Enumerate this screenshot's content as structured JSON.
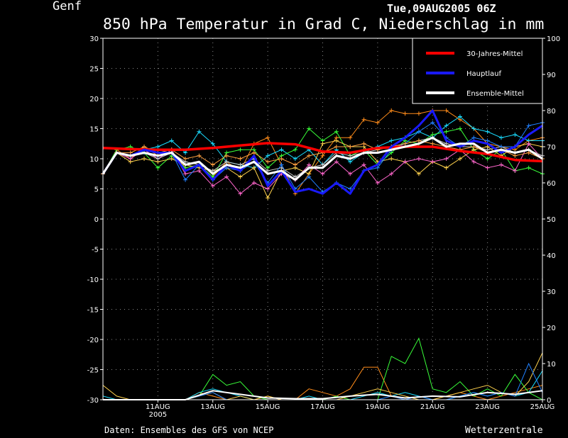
{
  "chart_data": {
    "type": "line",
    "station": "Genf",
    "timestamp": "Tue,09AUG2005 06Z",
    "title": "850 hPa Temperatur in Grad C, Niederschlag in mm",
    "footer_left": "Daten: Ensembles des GFS von NCEP",
    "footer_right": "Wetterzentrale",
    "y_left": {
      "ylim": [
        -30,
        30
      ],
      "ticks": [
        30,
        25,
        20,
        15,
        10,
        5,
        0,
        -5,
        -10,
        -15,
        -20,
        -25,
        -30
      ]
    },
    "y_right": {
      "ylim": [
        0,
        100
      ],
      "ticks": [
        100,
        90,
        80,
        70,
        60,
        50,
        40,
        30,
        20,
        10,
        0
      ]
    },
    "x_domain": [
      0,
      64
    ],
    "x_ticks": [
      {
        "x": 8,
        "label": "11AUG",
        "sub": "2005"
      },
      {
        "x": 16,
        "label": "13AUG",
        "sub": ""
      },
      {
        "x": 24,
        "label": "15AUG",
        "sub": ""
      },
      {
        "x": 32,
        "label": "17AUG",
        "sub": ""
      },
      {
        "x": 40,
        "label": "19AUG",
        "sub": ""
      },
      {
        "x": 48,
        "label": "21AUG",
        "sub": ""
      },
      {
        "x": 56,
        "label": "23AUG",
        "sub": ""
      },
      {
        "x": 64,
        "label": "25AUG",
        "sub": ""
      }
    ],
    "grid": true,
    "legend_position": "top-right",
    "colors": {
      "clim": "#ff0000",
      "main": "#1a1aff",
      "mean": "#ffffff",
      "members": [
        "#ff8c1a",
        "#1adcff",
        "#39ff39",
        "#ffd24d",
        "#ff66cc",
        "#c8c8c8",
        "#2080ff",
        "#ffa040"
      ]
    },
    "series": [
      {
        "name": "30-Jahres-Mittel",
        "role": "clim",
        "y_axis": "left",
        "x": [
          0,
          4,
          8,
          12,
          16,
          20,
          24,
          28,
          32,
          36,
          40,
          44,
          48,
          52,
          56,
          60,
          64
        ],
        "y": [
          11.8,
          11.6,
          11.5,
          11.5,
          11.8,
          12.2,
          12.6,
          12.4,
          11.2,
          11.0,
          11.8,
          12.0,
          12.0,
          11.3,
          10.8,
          9.8,
          9.6
        ]
      },
      {
        "name": "Hauptlauf",
        "role": "main",
        "y_axis": "left",
        "x": [
          0,
          2,
          4,
          6,
          8,
          10,
          12,
          14,
          16,
          18,
          20,
          22,
          24,
          26,
          28,
          30,
          32,
          34,
          36,
          38,
          40,
          42,
          44,
          46,
          48,
          50,
          52,
          54,
          56,
          58,
          60,
          62,
          64
        ],
        "y": [
          7.5,
          11.0,
          10.5,
          11.5,
          11.0,
          11.0,
          8.0,
          9.0,
          6.5,
          9.0,
          8.0,
          10.5,
          5.5,
          8.0,
          4.5,
          5.0,
          4.2,
          6.0,
          4.2,
          8.0,
          9.0,
          12.0,
          13.5,
          15.5,
          18.0,
          13.0,
          12.0,
          13.0,
          12.5,
          11.0,
          12.0,
          14.0,
          15.5
        ]
      },
      {
        "name": "Ensemble-Mittel",
        "role": "mean",
        "y_axis": "left",
        "x": [
          0,
          2,
          4,
          6,
          8,
          10,
          12,
          14,
          16,
          18,
          20,
          22,
          24,
          26,
          28,
          30,
          32,
          34,
          36,
          38,
          40,
          42,
          44,
          46,
          48,
          50,
          52,
          54,
          56,
          58,
          60,
          62,
          64
        ],
        "y": [
          7.5,
          11.0,
          10.5,
          11.0,
          10.5,
          11.0,
          9.0,
          9.5,
          7.5,
          9.0,
          8.5,
          9.5,
          7.5,
          8.0,
          6.5,
          8.5,
          8.5,
          10.5,
          10.0,
          11.0,
          11.0,
          11.5,
          12.0,
          12.5,
          13.5,
          12.0,
          12.5,
          12.5,
          11.0,
          11.5,
          11.0,
          11.5,
          10.0
        ]
      }
    ],
    "members": [
      {
        "x": [
          0,
          2,
          4,
          6,
          8,
          10,
          12,
          14,
          16,
          18,
          20,
          22,
          24,
          26,
          28,
          30,
          32,
          34,
          36,
          38,
          40,
          42,
          44,
          46,
          48,
          50,
          52,
          54,
          56,
          58,
          60,
          62,
          64
        ],
        "y": [
          7.5,
          11.5,
          10.0,
          12.0,
          10.5,
          11.0,
          8.5,
          9.0,
          7.0,
          9.5,
          8.0,
          12.5,
          13.5,
          9.0,
          4.2,
          7.5,
          10.5,
          13.5,
          13.5,
          16.5,
          16.0,
          18.0,
          17.5,
          17.5,
          18.0,
          18.0,
          16.5,
          15.0,
          12.5,
          12.0,
          11.5,
          13.0,
          13.5
        ]
      },
      {
        "x": [
          0,
          2,
          4,
          6,
          8,
          10,
          12,
          14,
          16,
          18,
          20,
          22,
          24,
          26,
          28,
          30,
          32,
          34,
          36,
          38,
          40,
          42,
          44,
          46,
          48,
          50,
          52,
          54,
          56,
          58,
          60,
          62,
          64
        ],
        "y": [
          7.5,
          11.0,
          10.5,
          11.5,
          12.0,
          13.0,
          11.0,
          14.5,
          12.5,
          9.5,
          9.0,
          8.5,
          10.5,
          11.5,
          10.0,
          11.5,
          9.0,
          11.5,
          9.5,
          11.0,
          12.0,
          13.0,
          13.5,
          14.5,
          13.5,
          15.5,
          17.0,
          15.0,
          14.5,
          13.5,
          14.0,
          13.0,
          13.0
        ]
      },
      {
        "x": [
          0,
          2,
          4,
          6,
          8,
          10,
          12,
          14,
          16,
          18,
          20,
          22,
          24,
          26,
          28,
          30,
          32,
          34,
          36,
          38,
          40,
          42,
          44,
          46,
          48,
          50,
          52,
          54,
          56,
          58,
          60,
          62,
          64
        ],
        "y": [
          7.5,
          11.5,
          12.0,
          11.0,
          8.5,
          10.5,
          8.5,
          9.0,
          7.0,
          11.0,
          11.5,
          11.5,
          8.5,
          10.5,
          11.5,
          15.0,
          13.0,
          14.5,
          10.5,
          11.5,
          9.0,
          11.0,
          13.0,
          12.5,
          14.0,
          14.5,
          15.0,
          11.5,
          10.0,
          11.5,
          8.0,
          8.5,
          7.5
        ]
      },
      {
        "x": [
          0,
          2,
          4,
          6,
          8,
          10,
          12,
          14,
          16,
          18,
          20,
          22,
          24,
          26,
          28,
          30,
          32,
          34,
          36,
          38,
          40,
          42,
          44,
          46,
          48,
          50,
          52,
          54,
          56,
          58,
          60,
          62,
          64
        ],
        "y": [
          7.5,
          11.0,
          9.5,
          10.0,
          9.5,
          10.0,
          9.0,
          8.5,
          8.0,
          8.5,
          7.0,
          8.5,
          3.5,
          8.0,
          8.5,
          7.5,
          12.5,
          13.0,
          12.0,
          12.0,
          9.5,
          10.0,
          9.5,
          7.5,
          9.5,
          8.5,
          10.0,
          11.5,
          12.0,
          10.5,
          12.0,
          12.5,
          12.0
        ]
      },
      {
        "x": [
          0,
          2,
          4,
          6,
          8,
          10,
          12,
          14,
          16,
          18,
          20,
          22,
          24,
          26,
          28,
          30,
          32,
          34,
          36,
          38,
          40,
          42,
          44,
          46,
          48,
          50,
          52,
          54,
          56,
          58,
          60,
          62,
          64
        ],
        "y": [
          7.5,
          11.0,
          10.0,
          11.5,
          10.0,
          11.5,
          7.5,
          8.0,
          5.5,
          7.0,
          4.2,
          6.0,
          5.0,
          7.5,
          6.5,
          9.0,
          7.5,
          9.5,
          7.5,
          9.0,
          6.0,
          7.5,
          9.5,
          10.0,
          9.5,
          10.0,
          11.5,
          9.5,
          8.5,
          9.0,
          8.0,
          12.5,
          10.0
        ]
      },
      {
        "x": [
          0,
          2,
          4,
          6,
          8,
          10,
          12,
          14,
          16,
          18,
          20,
          22,
          24,
          26,
          28,
          30,
          32,
          34,
          36,
          38,
          40,
          42,
          44,
          46,
          48,
          50,
          52,
          54,
          56,
          58,
          60,
          62,
          64
        ],
        "y": [
          7.5,
          11.0,
          10.5,
          11.0,
          10.0,
          11.0,
          9.5,
          9.0,
          8.0,
          9.5,
          9.0,
          10.0,
          8.0,
          8.5,
          7.0,
          8.5,
          9.0,
          11.0,
          10.5,
          11.0,
          11.5,
          12.0,
          12.5,
          13.0,
          13.5,
          12.5,
          12.0,
          12.0,
          11.5,
          12.0,
          11.0,
          11.5,
          10.5
        ]
      },
      {
        "x": [
          0,
          2,
          4,
          6,
          8,
          10,
          12,
          14,
          16,
          18,
          20,
          22,
          24,
          26,
          28,
          30,
          32,
          34,
          36,
          38,
          40,
          42,
          44,
          46,
          48,
          50,
          52,
          54,
          56,
          58,
          60,
          62,
          64
        ],
        "y": [
          7.5,
          11.0,
          10.5,
          11.0,
          10.5,
          11.0,
          6.5,
          9.0,
          6.5,
          8.5,
          8.0,
          9.5,
          6.0,
          9.0,
          5.0,
          7.0,
          4.5,
          6.0,
          5.0,
          8.0,
          8.5,
          11.5,
          12.5,
          14.5,
          16.0,
          13.5,
          12.0,
          13.5,
          13.0,
          12.0,
          12.0,
          15.5,
          16.0
        ]
      },
      {
        "x": [
          0,
          2,
          4,
          6,
          8,
          10,
          12,
          14,
          16,
          18,
          20,
          22,
          24,
          26,
          28,
          30,
          32,
          34,
          36,
          38,
          40,
          42,
          44,
          46,
          48,
          50,
          52,
          54,
          56,
          58,
          60,
          62,
          64
        ],
        "y": [
          7.5,
          11.0,
          11.0,
          12.0,
          11.0,
          11.5,
          10.0,
          10.5,
          9.0,
          10.5,
          10.0,
          11.0,
          9.5,
          10.0,
          9.0,
          10.5,
          11.0,
          12.0,
          12.0,
          12.5,
          11.5,
          12.0,
          12.5,
          13.0,
          12.5,
          12.0,
          11.5,
          12.0,
          11.0,
          11.5,
          10.5,
          11.0,
          10.0
        ]
      }
    ],
    "precip": [
      {
        "c": 0,
        "x": [
          0,
          2,
          4,
          6,
          8,
          10,
          12,
          14,
          16,
          18,
          20,
          22,
          24,
          26,
          28,
          30,
          32,
          34,
          36,
          38,
          40,
          42,
          44,
          46,
          48,
          50,
          52,
          54,
          56,
          58,
          60,
          62,
          64
        ],
        "y": [
          0,
          0,
          0,
          0,
          0,
          0,
          0,
          2,
          1,
          0,
          0,
          0,
          1,
          0,
          0,
          3,
          2,
          1,
          3,
          9,
          9,
          1,
          0,
          0,
          0,
          1,
          2,
          1,
          0,
          1,
          2,
          3,
          4
        ]
      },
      {
        "c": 2,
        "x": [
          0,
          2,
          4,
          6,
          8,
          10,
          12,
          14,
          16,
          18,
          20,
          22,
          24,
          26,
          28,
          30,
          32,
          34,
          36,
          38,
          40,
          42,
          44,
          46,
          48,
          50,
          52,
          54,
          56,
          58,
          60,
          62,
          64
        ],
        "y": [
          0,
          0,
          0,
          0,
          0,
          0,
          0,
          1,
          7,
          4,
          5,
          1,
          0,
          0,
          0,
          0,
          0,
          1,
          0,
          0,
          0,
          12,
          10,
          17,
          3,
          2,
          5,
          1,
          3,
          1,
          7,
          2,
          0
        ]
      },
      {
        "c": 1,
        "x": [
          0,
          2,
          4,
          6,
          8,
          10,
          12,
          14,
          16,
          18,
          20,
          22,
          24,
          26,
          28,
          30,
          32,
          34,
          36,
          38,
          40,
          42,
          44,
          46,
          48,
          50,
          52,
          54,
          56,
          58,
          60,
          62,
          64
        ],
        "y": [
          1,
          0,
          0,
          0,
          0,
          0,
          0,
          2,
          3,
          2,
          1,
          0,
          0,
          0,
          0,
          1,
          0,
          0,
          0,
          1,
          2,
          1,
          2,
          1,
          0,
          0,
          1,
          2,
          1,
          2,
          1,
          2,
          8
        ]
      },
      {
        "c": 3,
        "x": [
          0,
          2,
          4,
          6,
          8,
          10,
          12,
          14,
          16,
          18,
          20,
          22,
          24,
          26,
          28,
          30,
          32,
          34,
          36,
          38,
          40,
          42,
          44,
          46,
          48,
          50,
          52,
          54,
          56,
          58,
          60,
          62,
          64
        ],
        "y": [
          4,
          1,
          0,
          0,
          0,
          0,
          0,
          1,
          2,
          0,
          1,
          0,
          1,
          0,
          0,
          0,
          0,
          0,
          1,
          2,
          3,
          2,
          1,
          0,
          0,
          1,
          2,
          3,
          4,
          2,
          1,
          5,
          13
        ]
      },
      {
        "c": 6,
        "x": [
          0,
          2,
          4,
          6,
          8,
          10,
          12,
          14,
          16,
          18,
          20,
          22,
          24,
          26,
          28,
          30,
          32,
          34,
          36,
          38,
          40,
          42,
          44,
          46,
          48,
          50,
          52,
          54,
          56,
          58,
          60,
          62,
          64
        ],
        "y": [
          0,
          0,
          0,
          0,
          0,
          0,
          0,
          1,
          2,
          0,
          0,
          0,
          0,
          0,
          0,
          0,
          0,
          0,
          0,
          0,
          0,
          1,
          0,
          1,
          0,
          0,
          1,
          2,
          1,
          2,
          1,
          10,
          2
        ]
      }
    ],
    "precip_mean": {
      "x": [
        0,
        4,
        8,
        12,
        16,
        20,
        24,
        28,
        32,
        36,
        40,
        44,
        48,
        52,
        56,
        60,
        64
      ],
      "y": [
        0,
        0,
        0,
        0,
        2.5,
        1.5,
        0.5,
        0.3,
        0.3,
        1.0,
        1.5,
        0.5,
        1.0,
        0.8,
        2.0,
        1.5,
        2.5
      ]
    },
    "legend": [
      {
        "label": "30-Jahres-Mittel",
        "color": "#ff0000"
      },
      {
        "label": "Hauptlauf",
        "color": "#1a1aff"
      },
      {
        "label": "Ensemble-Mittel",
        "color": "#ffffff"
      }
    ]
  }
}
